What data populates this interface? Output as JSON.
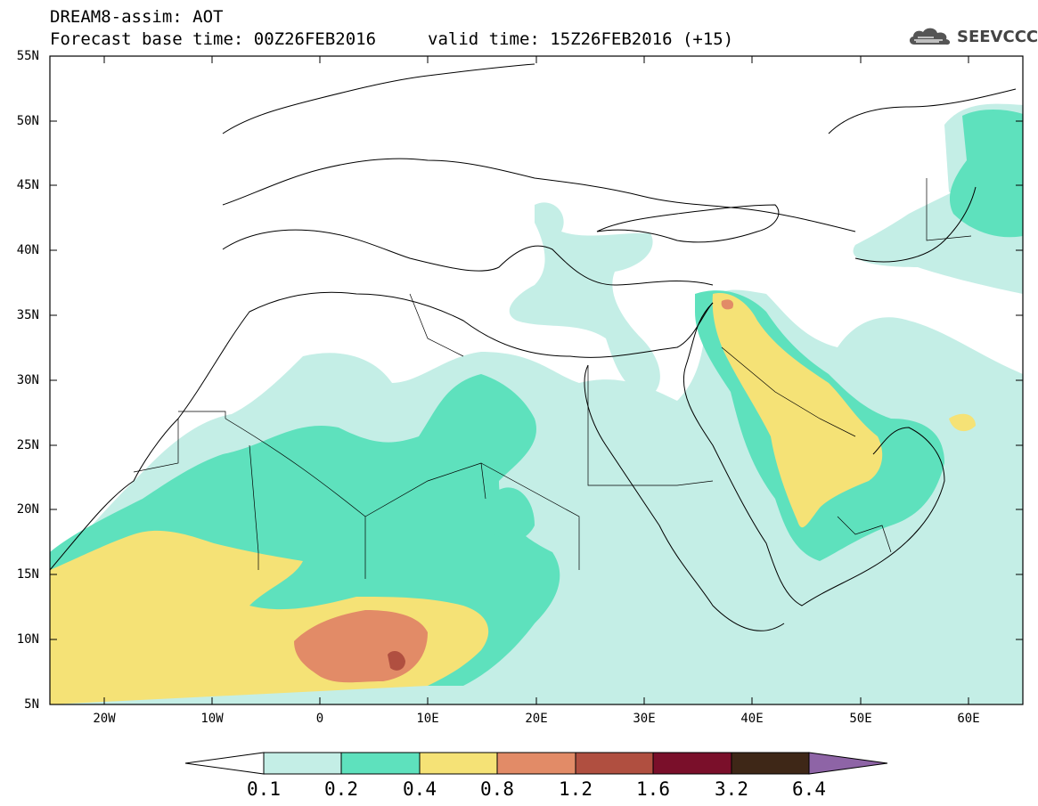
{
  "header": {
    "title": "DREAM8-assim: AOT",
    "base_time": "Forecast base time: 00Z26FEB2016",
    "valid_time": "valid time: 15Z26FEB2016 (+15)"
  },
  "logo": {
    "text": "SEEVCCC",
    "icon": "cloud-icon"
  },
  "map": {
    "lon_range": [
      -25,
      65
    ],
    "lat_range": [
      5,
      55
    ],
    "lat_ticks": [
      "55N",
      "50N",
      "45N",
      "40N",
      "35N",
      "30N",
      "25N",
      "20N",
      "15N",
      "10N",
      "5N"
    ],
    "lon_ticks": [
      "20W",
      "10W",
      "0",
      "10E",
      "20E",
      "30E",
      "40E",
      "50E",
      "60E"
    ],
    "field": "Aerosol optical thickness (AOT)"
  },
  "colorbar": {
    "levels": [
      "0.1",
      "0.2",
      "0.4",
      "0.8",
      "1.2",
      "1.6",
      "3.2",
      "6.4"
    ],
    "colors": [
      "#ffffff",
      "#c4eee6",
      "#5ee1bd",
      "#f5e276",
      "#e28b67",
      "#b04f40",
      "#7a0f2a",
      "#3e2717",
      "#8e64a6"
    ]
  }
}
